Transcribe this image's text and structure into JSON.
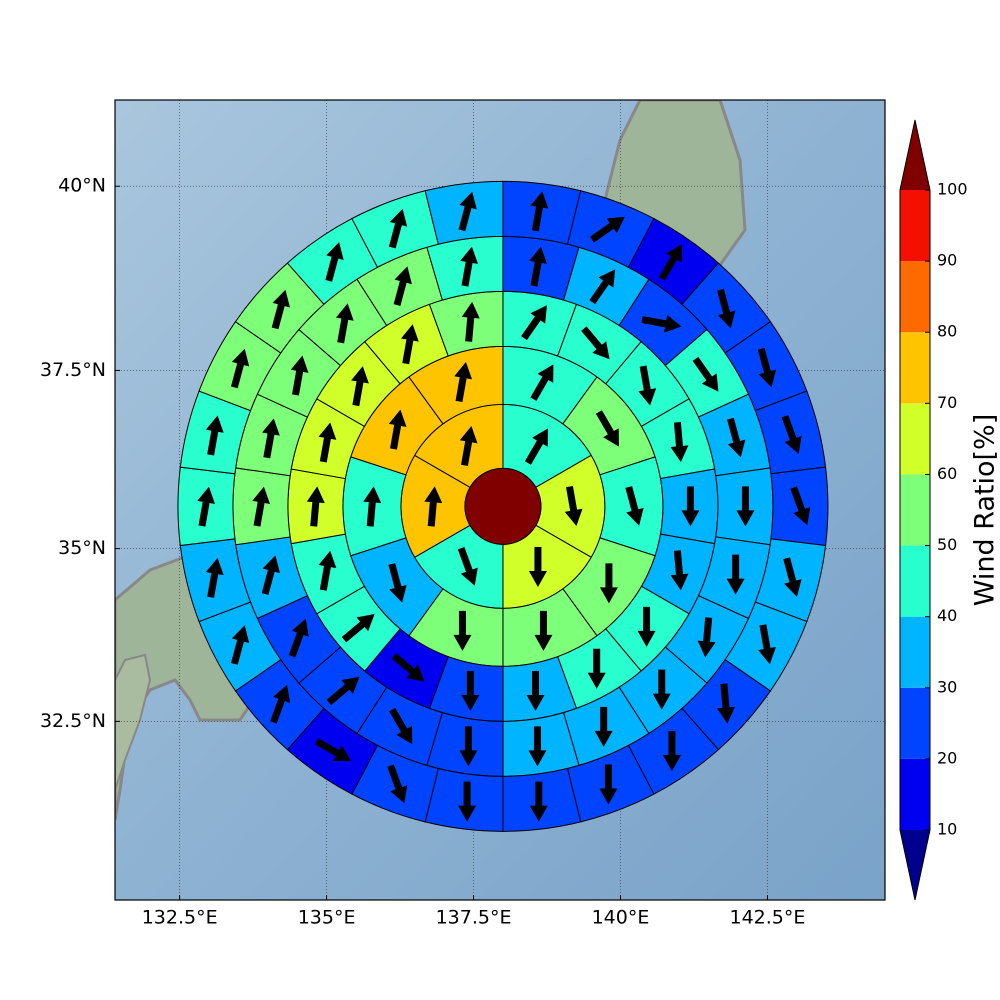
{
  "chart_data": {
    "type": "polar-sector-map",
    "projection": "mercator",
    "xlim": [
      131.4,
      144.5
    ],
    "ylim": [
      29.84,
      41.14
    ],
    "xticks": [
      {
        "value": 132.5,
        "label": "132.5°E"
      },
      {
        "value": 135,
        "label": "135°E"
      },
      {
        "value": 137.5,
        "label": "137.5°E"
      },
      {
        "value": 140,
        "label": "140°E"
      },
      {
        "value": 142.5,
        "label": "142.5°E"
      }
    ],
    "yticks": [
      {
        "value": 32.5,
        "label": "32.5°N"
      },
      {
        "value": 35,
        "label": "35°N"
      },
      {
        "value": 37.5,
        "label": "37.5°N"
      },
      {
        "value": 40,
        "label": "40°N"
      }
    ],
    "grid": true,
    "center": [
      138.0,
      35.6
    ],
    "center_value": 105,
    "rings": [
      {
        "values": [
          45,
          65,
          62,
          45,
          75,
          75
        ],
        "directions": [
          30,
          170,
          180,
          160,
          5,
          10
        ]
      },
      {
        "values": [
          45,
          55,
          45,
          55,
          55,
          55,
          35,
          45,
          75,
          75
        ],
        "directions": [
          30,
          150,
          165,
          180,
          180,
          180,
          165,
          5,
          10,
          10
        ]
      },
      {
        "values": [
          45,
          45,
          45,
          45,
          35,
          35,
          45,
          45,
          35,
          25,
          15,
          45,
          45,
          65,
          65,
          65,
          65,
          55
        ],
        "directions": [
          35,
          140,
          170,
          175,
          180,
          175,
          180,
          180,
          180,
          180,
          130,
          50,
          10,
          5,
          10,
          10,
          10,
          5
        ]
      },
      {
        "values": [
          25,
          35,
          25,
          45,
          35,
          35,
          35,
          35,
          35,
          35,
          35,
          25,
          25,
          25,
          25,
          35,
          55,
          55,
          55,
          55,
          55,
          45
        ],
        "directions": [
          10,
          35,
          100,
          145,
          165,
          180,
          180,
          185,
          180,
          180,
          180,
          180,
          150,
          50,
          20,
          15,
          10,
          10,
          10,
          10,
          15,
          10
        ]
      },
      {
        "values": [
          25,
          25,
          15,
          25,
          25,
          25,
          25,
          35,
          35,
          25,
          25,
          25,
          25,
          25,
          25,
          15,
          25,
          35,
          35,
          45,
          45,
          55,
          55,
          45,
          45,
          35
        ],
        "directions": [
          10,
          55,
          30,
          165,
          165,
          160,
          160,
          165,
          170,
          175,
          180,
          180,
          180,
          180,
          160,
          120,
          20,
          15,
          10,
          10,
          10,
          15,
          15,
          15,
          15,
          15
        ]
      }
    ],
    "colorbar": {
      "label": "Wind Ratio[%]",
      "levels": [
        10,
        20,
        30,
        40,
        50,
        60,
        70,
        80,
        90,
        100
      ],
      "colors": [
        "#0000f0",
        "#0044ff",
        "#00b4ff",
        "#29ffce",
        "#7dff7a",
        "#d0ff29",
        "#ffc400",
        "#ff6a00",
        "#f41000"
      ],
      "under_color": "#00008f",
      "over_color": "#800000"
    }
  }
}
